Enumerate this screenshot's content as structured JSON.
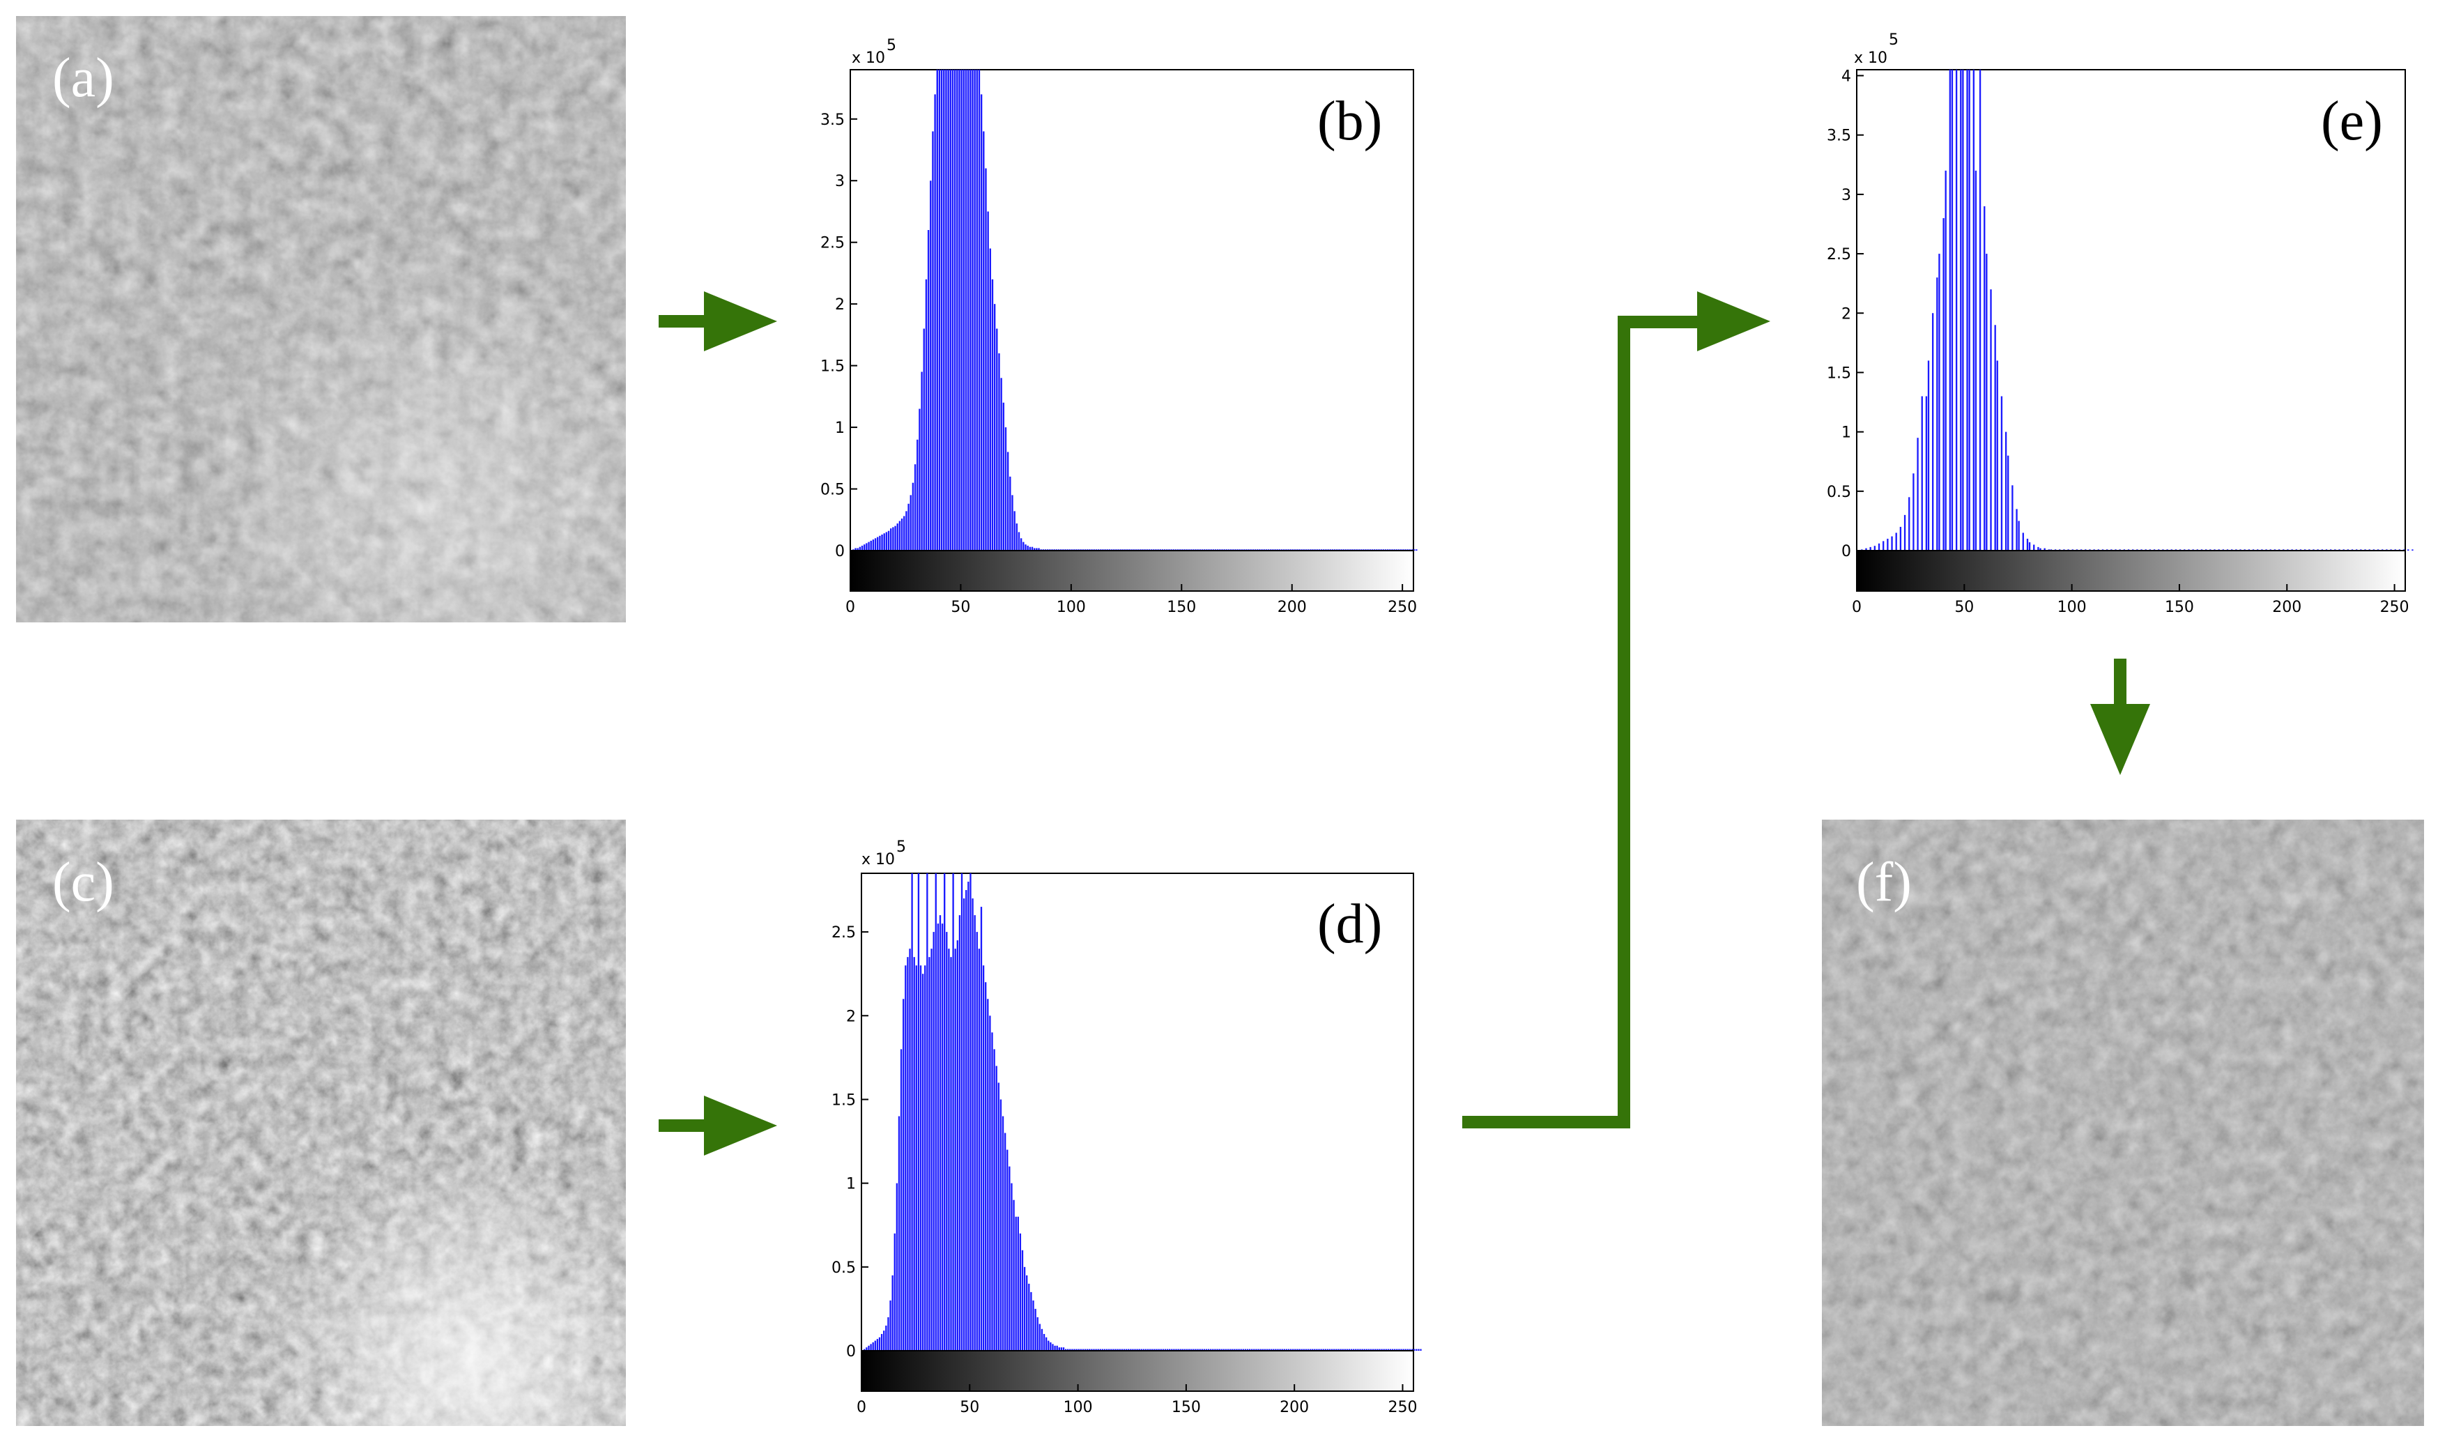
{
  "colors": {
    "arrow": "#357409",
    "bar": "#1a1aff",
    "axis": "#000000"
  },
  "panels": {
    "a": {
      "label": "(a)",
      "kind": "satellite image"
    },
    "b": {
      "label": "(b)"
    },
    "c": {
      "label": "(c)",
      "kind": "satellite image"
    },
    "d": {
      "label": "(d)"
    },
    "e": {
      "label": "(e)"
    },
    "f": {
      "label": "(f)",
      "kind": "satellite image"
    }
  },
  "chart_data": [
    {
      "id": "b",
      "type": "bar",
      "title": "(b)",
      "exponent_label": "x 10",
      "exponent": "5",
      "x_ticks": [
        "0",
        "50",
        "100",
        "150",
        "200",
        "250"
      ],
      "y_ticks": [
        "0",
        "0.5",
        "1",
        "1.5",
        "2",
        "2.5",
        "3",
        "3.5"
      ],
      "xlim": [
        0,
        255
      ],
      "ylim": [
        0,
        3.9
      ],
      "colorbar": "grayscale 0-255",
      "values": [
        0.0,
        0.01,
        0.02,
        0.02,
        0.03,
        0.04,
        0.05,
        0.06,
        0.07,
        0.08,
        0.09,
        0.1,
        0.11,
        0.12,
        0.13,
        0.14,
        0.15,
        0.16,
        0.18,
        0.19,
        0.2,
        0.22,
        0.24,
        0.26,
        0.28,
        0.32,
        0.38,
        0.45,
        0.55,
        0.7,
        0.9,
        1.15,
        1.45,
        1.8,
        2.2,
        2.6,
        3.0,
        3.4,
        3.7,
        3.9,
        3.95,
        3.95,
        3.95,
        3.95,
        3.95,
        3.95,
        3.95,
        3.95,
        3.95,
        3.95,
        3.95,
        3.95,
        3.95,
        3.95,
        3.95,
        3.95,
        3.95,
        3.95,
        3.95,
        3.7,
        3.4,
        3.1,
        2.75,
        2.45,
        2.2,
        2.0,
        1.8,
        1.6,
        1.4,
        1.2,
        1.0,
        0.8,
        0.6,
        0.45,
        0.32,
        0.22,
        0.15,
        0.1,
        0.07,
        0.05,
        0.04,
        0.03,
        0.03,
        0.02,
        0.02,
        0.02,
        0.01,
        0.01,
        0.01,
        0.01,
        0.01,
        0.01,
        0.01,
        0.01,
        0.01,
        0.01,
        0.01,
        0.01,
        0.01,
        0.01,
        0.01,
        0.01,
        0.01,
        0.01,
        0.01,
        0.01,
        0.01,
        0.01,
        0.01,
        0.01,
        0.01,
        0.01,
        0.01,
        0.01,
        0.01,
        0.01,
        0.01,
        0.01,
        0.01,
        0.01,
        0.01,
        0.01,
        0.01,
        0.01,
        0.01,
        0.01,
        0.01,
        0.01,
        0.01,
        0.01,
        0.01,
        0.01,
        0.01,
        0.01,
        0.01,
        0.01,
        0.01,
        0.01,
        0.01,
        0.01,
        0.01,
        0.01,
        0.01,
        0.01,
        0.01,
        0.01,
        0.01,
        0.01,
        0.01,
        0.01,
        0.01,
        0.01,
        0.01,
        0.01,
        0.01,
        0.01,
        0.01,
        0.01,
        0.01,
        0.01,
        0.01,
        0.01,
        0.01,
        0.01,
        0.01,
        0.01,
        0.01,
        0.01,
        0.01,
        0.01,
        0.01,
        0.01,
        0.01,
        0.01,
        0.01,
        0.01,
        0.01,
        0.01,
        0.01,
        0.01,
        0.01,
        0.01,
        0.01,
        0.01,
        0.01,
        0.01,
        0.01,
        0.01,
        0.01,
        0.01,
        0.01,
        0.01,
        0.01,
        0.01,
        0.01,
        0.01,
        0.01,
        0.01,
        0.01,
        0.01,
        0.01,
        0.01,
        0.01,
        0.01,
        0.01,
        0.01,
        0.01,
        0.01,
        0.01,
        0.01,
        0.01,
        0.01,
        0.01,
        0.01,
        0.01,
        0.01,
        0.01,
        0.01,
        0.01,
        0.01,
        0.01,
        0.01,
        0.01,
        0.01,
        0.01,
        0.01,
        0.01,
        0.01,
        0.01,
        0.01,
        0.01,
        0.01,
        0.01,
        0.01,
        0.01,
        0.01,
        0.01,
        0.01,
        0.01,
        0.01,
        0.01,
        0.01,
        0.01,
        0.01,
        0.01,
        0.01,
        0.01,
        0.01,
        0.01,
        0.01,
        0.01,
        0.01,
        0.01,
        0.01,
        0.01,
        0.01,
        0.01
      ]
    },
    {
      "id": "d",
      "type": "bar",
      "title": "(d)",
      "exponent_label": "x 10",
      "exponent": "5",
      "x_ticks": [
        "0",
        "50",
        "100",
        "150",
        "200",
        "250"
      ],
      "y_ticks": [
        "0",
        "0.5",
        "1",
        "1.5",
        "2",
        "2.5"
      ],
      "xlim": [
        0,
        255
      ],
      "ylim": [
        0,
        2.85
      ],
      "colorbar": "grayscale 0-255",
      "values": [
        0.0,
        0.01,
        0.02,
        0.03,
        0.04,
        0.05,
        0.06,
        0.07,
        0.08,
        0.1,
        0.12,
        0.15,
        0.2,
        0.3,
        0.45,
        0.7,
        1.0,
        1.4,
        1.8,
        2.1,
        2.3,
        2.35,
        2.4,
        2.85,
        2.35,
        2.3,
        2.85,
        2.3,
        2.25,
        2.3,
        2.85,
        2.35,
        2.4,
        2.5,
        2.85,
        2.55,
        2.6,
        2.55,
        2.85,
        2.5,
        2.4,
        2.35,
        2.85,
        2.4,
        2.45,
        2.6,
        2.85,
        2.7,
        2.75,
        2.8,
        2.85,
        2.7,
        2.6,
        2.5,
        2.4,
        2.65,
        2.3,
        2.2,
        2.1,
        2.0,
        1.9,
        1.8,
        1.7,
        1.6,
        1.5,
        1.4,
        1.3,
        1.2,
        1.1,
        1.0,
        0.9,
        0.8,
        0.8,
        0.7,
        0.6,
        0.5,
        0.45,
        0.4,
        0.35,
        0.3,
        0.25,
        0.2,
        0.16,
        0.13,
        0.1,
        0.08,
        0.06,
        0.05,
        0.04,
        0.03,
        0.03,
        0.02,
        0.02,
        0.02,
        0.01,
        0.01,
        0.01,
        0.01,
        0.01,
        0.01,
        0.01,
        0.01,
        0.01,
        0.01,
        0.01,
        0.01,
        0.01,
        0.01,
        0.01,
        0.01,
        0.01,
        0.01,
        0.01,
        0.01,
        0.01,
        0.01,
        0.01,
        0.01,
        0.01,
        0.01,
        0.01,
        0.01,
        0.01,
        0.01,
        0.01,
        0.01,
        0.01,
        0.01,
        0.01,
        0.01,
        0.01,
        0.01,
        0.01,
        0.01,
        0.01,
        0.01,
        0.01,
        0.01,
        0.01,
        0.01,
        0.01,
        0.01,
        0.01,
        0.01,
        0.01,
        0.01,
        0.01,
        0.01,
        0.01,
        0.01,
        0.01,
        0.01,
        0.01,
        0.01,
        0.01,
        0.01,
        0.01,
        0.01,
        0.01,
        0.01,
        0.01,
        0.01,
        0.01,
        0.01,
        0.01,
        0.01,
        0.01,
        0.01,
        0.01,
        0.01,
        0.01,
        0.01,
        0.01,
        0.01,
        0.01,
        0.01,
        0.01,
        0.01,
        0.01,
        0.01,
        0.01,
        0.01,
        0.01,
        0.01,
        0.01,
        0.01,
        0.01,
        0.01,
        0.01,
        0.01,
        0.01,
        0.01,
        0.01,
        0.01,
        0.01,
        0.01,
        0.01,
        0.01,
        0.01,
        0.01,
        0.01,
        0.01,
        0.01,
        0.01,
        0.01,
        0.01,
        0.01,
        0.01,
        0.01,
        0.01,
        0.01,
        0.01,
        0.01,
        0.01,
        0.01,
        0.01,
        0.01,
        0.01,
        0.01,
        0.01,
        0.01,
        0.01,
        0.01,
        0.01,
        0.01,
        0.01,
        0.01,
        0.01,
        0.01,
        0.01,
        0.01,
        0.01,
        0.01,
        0.01,
        0.01,
        0.01,
        0.01,
        0.01,
        0.01,
        0.01,
        0.01,
        0.01,
        0.01,
        0.01,
        0.01,
        0.01,
        0.01,
        0.01,
        0.01,
        0.01,
        0.01,
        0.01,
        0.01,
        0.01,
        0.01,
        0.01,
        0.01,
        0.01,
        0.01
      ]
    },
    {
      "id": "e",
      "type": "bar",
      "title": "(e)",
      "exponent_label": "x 10",
      "exponent": "5",
      "x_ticks": [
        "0",
        "50",
        "100",
        "150",
        "200",
        "250"
      ],
      "y_ticks": [
        "0",
        "0.5",
        "1",
        "1.5",
        "2",
        "2.5",
        "3",
        "3.5",
        "4"
      ],
      "xlim": [
        0,
        255
      ],
      "ylim": [
        0,
        4.05
      ],
      "colorbar": "grayscale 0-255",
      "values": [
        0.0,
        0.0,
        0.01,
        0.0,
        0.02,
        0.0,
        0.03,
        0.0,
        0.04,
        0.0,
        0.06,
        0.0,
        0.08,
        0.0,
        0.1,
        0.0,
        0.12,
        0.0,
        0.15,
        0.0,
        0.2,
        0.0,
        0.3,
        0.0,
        0.45,
        0.0,
        0.65,
        0.0,
        0.95,
        0.0,
        1.3,
        0.0,
        1.3,
        1.6,
        0.0,
        2.0,
        0.0,
        2.3,
        2.5,
        0.0,
        2.8,
        3.2,
        0.0,
        4.05,
        4.05,
        0.0,
        4.05,
        0.0,
        4.05,
        4.05,
        0.0,
        4.05,
        4.05,
        0.0,
        4.05,
        3.2,
        0.0,
        4.05,
        0.0,
        2.9,
        2.5,
        0.0,
        2.2,
        0.0,
        1.9,
        1.6,
        0.0,
        1.3,
        0.0,
        1.0,
        0.8,
        0.0,
        0.55,
        0.0,
        0.35,
        0.25,
        0.0,
        0.15,
        0.0,
        0.1,
        0.07,
        0.0,
        0.05,
        0.0,
        0.03,
        0.02,
        0.0,
        0.02,
        0.0,
        0.01,
        0.01,
        0.0,
        0.01,
        0.0,
        0.01,
        0.0,
        0.01,
        0.0,
        0.01,
        0.0,
        0.01,
        0.0,
        0.01,
        0.0,
        0.01,
        0.0,
        0.01,
        0.0,
        0.01,
        0.0,
        0.01,
        0.0,
        0.01,
        0.0,
        0.01,
        0.0,
        0.01,
        0.0,
        0.01,
        0.0,
        0.01,
        0.0,
        0.01,
        0.0,
        0.01,
        0.0,
        0.01,
        0.0,
        0.01,
        0.0,
        0.01,
        0.0,
        0.01,
        0.0,
        0.01,
        0.0,
        0.01,
        0.0,
        0.01,
        0.0,
        0.01,
        0.0,
        0.01,
        0.0,
        0.01,
        0.0,
        0.01,
        0.0,
        0.01,
        0.0,
        0.01,
        0.0,
        0.01,
        0.0,
        0.01,
        0.0,
        0.01,
        0.0,
        0.01,
        0.0,
        0.01,
        0.0,
        0.01,
        0.0,
        0.01,
        0.0,
        0.01,
        0.0,
        0.01,
        0.0,
        0.01,
        0.0,
        0.01,
        0.0,
        0.01,
        0.0,
        0.01,
        0.0,
        0.01,
        0.0,
        0.01,
        0.0,
        0.01,
        0.0,
        0.01,
        0.0,
        0.01,
        0.0,
        0.01,
        0.0,
        0.01,
        0.0,
        0.01,
        0.0,
        0.01,
        0.0,
        0.01,
        0.0,
        0.01,
        0.0,
        0.01,
        0.0,
        0.01,
        0.0,
        0.01,
        0.0,
        0.01,
        0.0,
        0.01,
        0.0,
        0.01,
        0.0,
        0.01,
        0.0,
        0.01,
        0.0,
        0.01,
        0.0,
        0.01,
        0.0,
        0.01,
        0.0,
        0.01,
        0.0,
        0.01,
        0.0,
        0.01,
        0.0,
        0.01,
        0.0,
        0.01,
        0.0,
        0.01,
        0.0,
        0.01,
        0.0,
        0.01,
        0.0,
        0.01,
        0.0,
        0.01,
        0.0,
        0.01,
        0.0,
        0.01,
        0.0,
        0.01,
        0.0,
        0.01,
        0.0,
        0.01,
        0.0,
        0.01,
        0.0,
        0.01,
        0.0,
        0.01,
        0.0,
        0.01,
        0.0
      ]
    }
  ]
}
